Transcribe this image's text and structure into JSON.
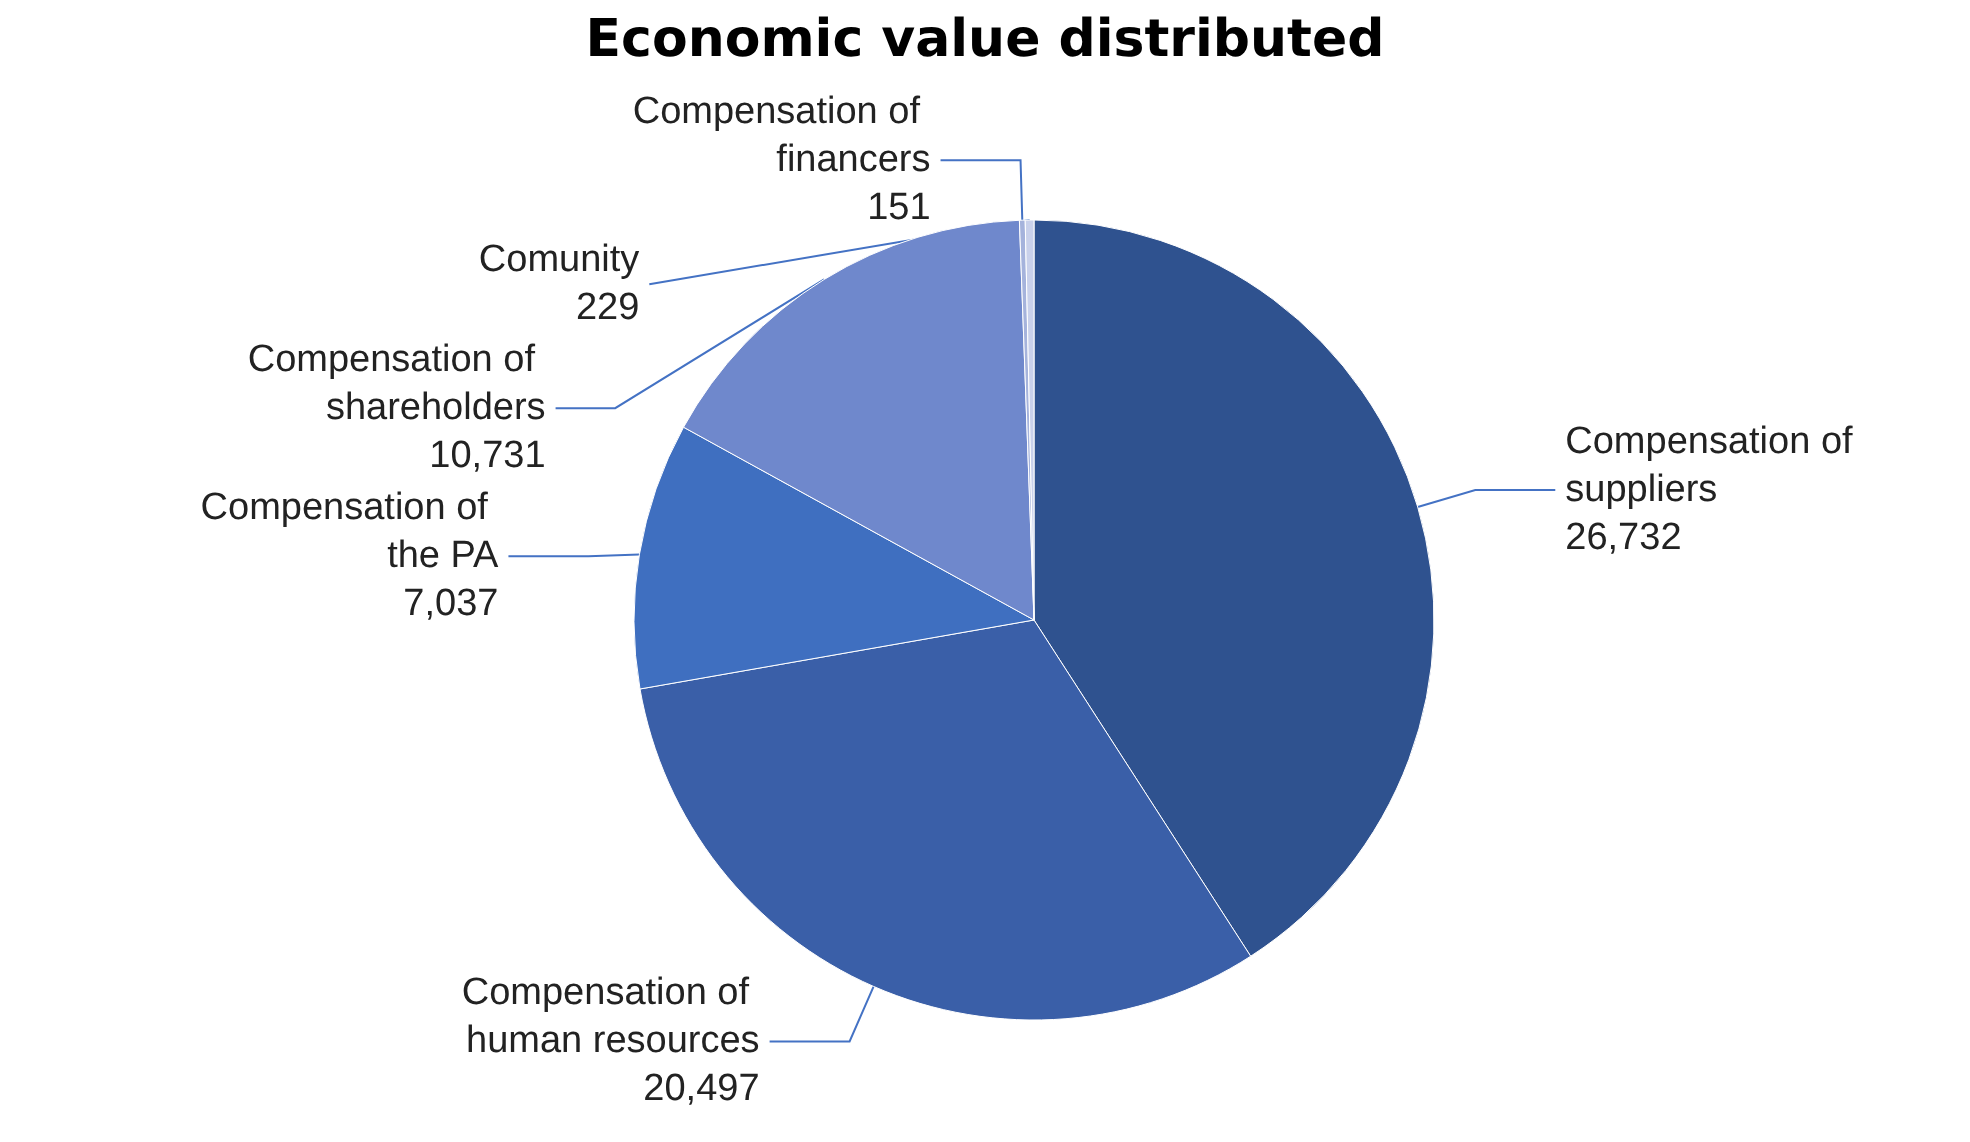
{
  "chart_data": {
    "type": "pie",
    "title": "Economic value distributed",
    "categories": [
      "Compensation of suppliers",
      "Compensation of human resources",
      "Compensation of the PA",
      "Compensation of shareholders",
      "Compensation of financers",
      "Comunity"
    ],
    "values": [
      26732,
      20497,
      7037,
      10731,
      151,
      229
    ],
    "colors": [
      "#2f528f",
      "#3a5fa8",
      "#3f6fc0",
      "#6f88cc",
      "#a5b3dc",
      "#c9d1eb"
    ],
    "value_labels": [
      "26,732",
      "20,497",
      "7,037",
      "10,731",
      "151",
      "229"
    ],
    "legend": false
  }
}
